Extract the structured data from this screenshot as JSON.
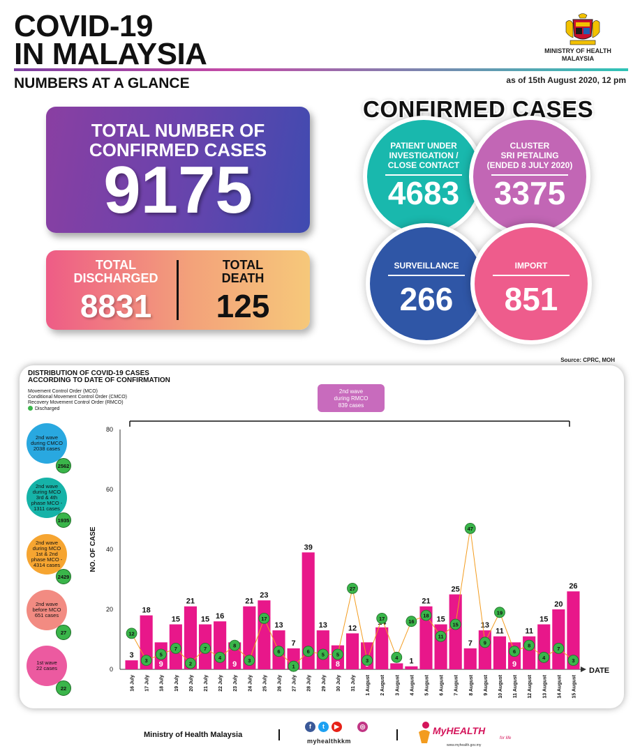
{
  "header": {
    "title_line1": "COVID-19",
    "title_line2": "IN MALAYSIA",
    "subtitle": "NUMBERS AT A GLANCE",
    "as_of": "as of 15th August 2020, 12 pm",
    "ministry_line1": "MINISTRY OF HEALTH",
    "ministry_line2": "MALAYSIA"
  },
  "total": {
    "label_line1": "TOTAL NUMBER OF",
    "label_line2": "CONFIRMED CASES",
    "value": "9175"
  },
  "discharged": {
    "label_line1": "TOTAL",
    "label_line2": "DISCHARGED",
    "value": "8831"
  },
  "death": {
    "label_line1": "TOTAL",
    "label_line2": "DEATH",
    "value": "125"
  },
  "confirmed_cases": {
    "title": "CONFIRMED CASES",
    "circles": [
      {
        "line1": "PATIENT UNDER",
        "line2": "INVESTIGATION /",
        "line3": "CLOSE CONTACT",
        "value": "4683",
        "color": "#19b8ad"
      },
      {
        "line1": "CLUSTER",
        "line2": "SRI PETALING",
        "line3": "(ENDED 8 JULY 2020)",
        "value": "3375",
        "color": "#c266b5"
      },
      {
        "line1": "SURVEILLANCE",
        "value": "266",
        "color": "#2f56a6"
      },
      {
        "line1": "IMPORT",
        "value": "851",
        "color": "#ee5c8c"
      }
    ]
  },
  "source": "Source: CPRC, MOH",
  "chart_panel": {
    "title_line1": "DISTRIBUTION OF COVID-19 CASES",
    "title_line2": "ACCORDING TO DATE OF CONFIRMATION",
    "legend": [
      "Movement Control Order (MCO)",
      "Conditional Movement Control Order (CMCO)",
      "Recovery Movement Control Order (RMCO)",
      "Discharged"
    ],
    "wave_note_line1": "2nd wave",
    "wave_note_line2": "during RMCO",
    "wave_note_line3": "839 cases",
    "waves": [
      {
        "line1": "2nd wave",
        "line2": "during CMCO",
        "line3": "2038 cases",
        "line4": "",
        "badge": "2562",
        "color": "#29a8e0"
      },
      {
        "line1": "2nd wave",
        "line2": "during MCO",
        "line3": "3rd & 4th",
        "line4": "phase MCO - 1311 cases",
        "badge": "1935",
        "color": "#16b3a8"
      },
      {
        "line1": "2nd wave",
        "line2": "during MCO",
        "line3": "1st & 2nd",
        "line4": "phase MCO - 4314 cases",
        "badge": "2429",
        "color": "#f6a531"
      },
      {
        "line1": "2nd wave",
        "line2": "before MCO",
        "line3": "651 cases",
        "line4": "",
        "badge": "27",
        "color": "#f28b82"
      },
      {
        "line1": "1st wave",
        "line2": "22 cases",
        "line3": "",
        "line4": "",
        "badge": "22",
        "color": "#ec5aa0"
      }
    ]
  },
  "chart_data": {
    "type": "bar",
    "title": "DISTRIBUTION OF COVID-19 CASES ACCORDING TO DATE OF CONFIRMATION",
    "xlabel": "DATE",
    "ylabel": "NO. OF CASE",
    "ylim": [
      0,
      80
    ],
    "yticks": [
      0,
      20,
      40,
      60,
      80
    ],
    "grid": false,
    "categories": [
      "16 July",
      "17 July",
      "18 July",
      "19 July",
      "20 July",
      "21 July",
      "22 July",
      "23 July",
      "24 July",
      "25 July",
      "26 July",
      "27 July",
      "28 July",
      "29 July",
      "30 July",
      "31 July",
      "1 August",
      "2 August",
      "3 August",
      "4 August",
      "5 August",
      "6 August",
      "7 August",
      "8 August",
      "9 August",
      "10 August",
      "11 August",
      "12 August",
      "13 August",
      "14 August",
      "15 August"
    ],
    "series": [
      {
        "name": "",
        "type": "bar",
        "color": "#e8178a",
        "values": [
          3,
          18,
          9,
          15,
          21,
          15,
          16,
          9,
          21,
          23,
          13,
          7,
          39,
          13,
          8,
          12,
          9,
          14,
          2,
          1,
          21,
          15,
          25,
          7,
          13,
          11,
          9,
          11,
          15,
          20,
          26
        ]
      },
      {
        "name": "Discharged",
        "type": "line",
        "color": "#f39c1f",
        "values": [
          12,
          3,
          5,
          7,
          2,
          7,
          4,
          8,
          3,
          17,
          6,
          1,
          6,
          5,
          5,
          27,
          3,
          17,
          4,
          16,
          18,
          11,
          15,
          47,
          9,
          19,
          6,
          8,
          4,
          7,
          3
        ]
      }
    ]
  },
  "footer": {
    "ministry": "Ministry of Health Malaysia",
    "social_handle": "myhealthkkm",
    "brand": "MyHEALTH",
    "brand_tag": "for life",
    "brand_url": "www.myhealth.gov.my"
  }
}
